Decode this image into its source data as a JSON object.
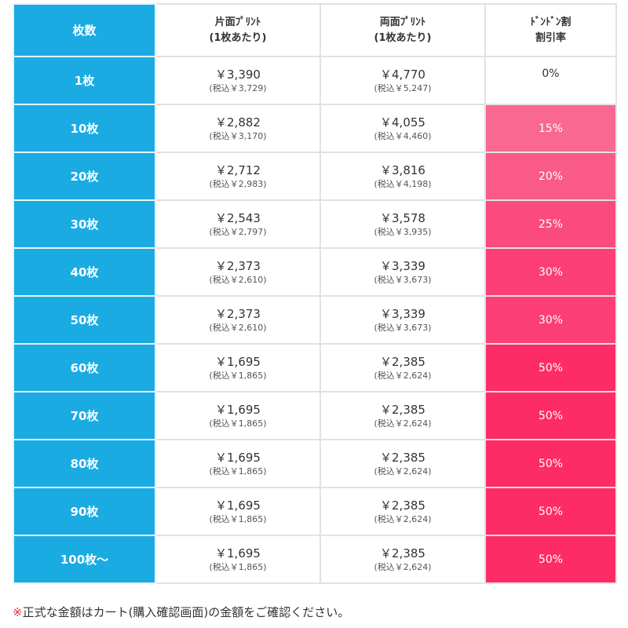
{
  "table": {
    "headers": {
      "qty": "枚数",
      "single": {
        "line1": "片面ﾌﾟﾘﾝﾄ",
        "line2": "(1枚あたり)"
      },
      "double": {
        "line1": "両面ﾌﾟﾘﾝﾄ",
        "line2": "(1枚あたり)"
      },
      "rate": {
        "line1": "ﾄﾞﾝﾄﾞﾝ割",
        "line2": "割引率"
      }
    },
    "rows": [
      {
        "qty": "1枚",
        "single": "￥3,390",
        "single_tax": "(税込￥3,729)",
        "double": "￥4,770",
        "double_tax": "(税込￥5,247)",
        "rate": "0%",
        "rate_color": "#ffffff"
      },
      {
        "qty": "10枚",
        "single": "￥2,882",
        "single_tax": "(税込￥3,170)",
        "double": "￥4,055",
        "double_tax": "(税込￥4,460)",
        "rate": "15%",
        "rate_color": "#f96891"
      },
      {
        "qty": "20枚",
        "single": "￥2,712",
        "single_tax": "(税込￥2,983)",
        "double": "￥3,816",
        "double_tax": "(税込￥4,198)",
        "rate": "20%",
        "rate_color": "#f95a88"
      },
      {
        "qty": "30枚",
        "single": "￥2,543",
        "single_tax": "(税込￥2,797)",
        "double": "￥3,578",
        "double_tax": "(税込￥3,935)",
        "rate": "25%",
        "rate_color": "#fb4a7e"
      },
      {
        "qty": "40枚",
        "single": "￥2,373",
        "single_tax": "(税込￥2,610)",
        "double": "￥3,339",
        "double_tax": "(税込￥3,673)",
        "rate": "30%",
        "rate_color": "#fc3e76"
      },
      {
        "qty": "50枚",
        "single": "￥2,373",
        "single_tax": "(税込￥2,610)",
        "double": "￥3,339",
        "double_tax": "(税込￥3,673)",
        "rate": "30%",
        "rate_color": "#fc3e76"
      },
      {
        "qty": "60枚",
        "single": "￥1,695",
        "single_tax": "(税込￥1,865)",
        "double": "￥2,385",
        "double_tax": "(税込￥2,624)",
        "rate": "50%",
        "rate_color": "#fe2c66"
      },
      {
        "qty": "70枚",
        "single": "￥1,695",
        "single_tax": "(税込￥1,865)",
        "double": "￥2,385",
        "double_tax": "(税込￥2,624)",
        "rate": "50%",
        "rate_color": "#fe2c66"
      },
      {
        "qty": "80枚",
        "single": "￥1,695",
        "single_tax": "(税込￥1,865)",
        "double": "￥2,385",
        "double_tax": "(税込￥2,624)",
        "rate": "50%",
        "rate_color": "#fe2c66"
      },
      {
        "qty": "90枚",
        "single": "￥1,695",
        "single_tax": "(税込￥1,865)",
        "double": "￥2,385",
        "double_tax": "(税込￥2,624)",
        "rate": "50%",
        "rate_color": "#fe2c66"
      },
      {
        "qty": "100枚～",
        "single": "￥1,695",
        "single_tax": "(税込￥1,865)",
        "double": "￥2,385",
        "double_tax": "(税込￥2,624)",
        "rate": "50%",
        "rate_color": "#fe2c66"
      }
    ]
  },
  "footnote": {
    "mark": "※",
    "text": "正式な金額はカート(購入確認画面)の金額をご確認ください。"
  },
  "colors": {
    "qty_column": "#1aabe3",
    "border": "#e2e2e2",
    "footnote_mark": "#e83040"
  }
}
